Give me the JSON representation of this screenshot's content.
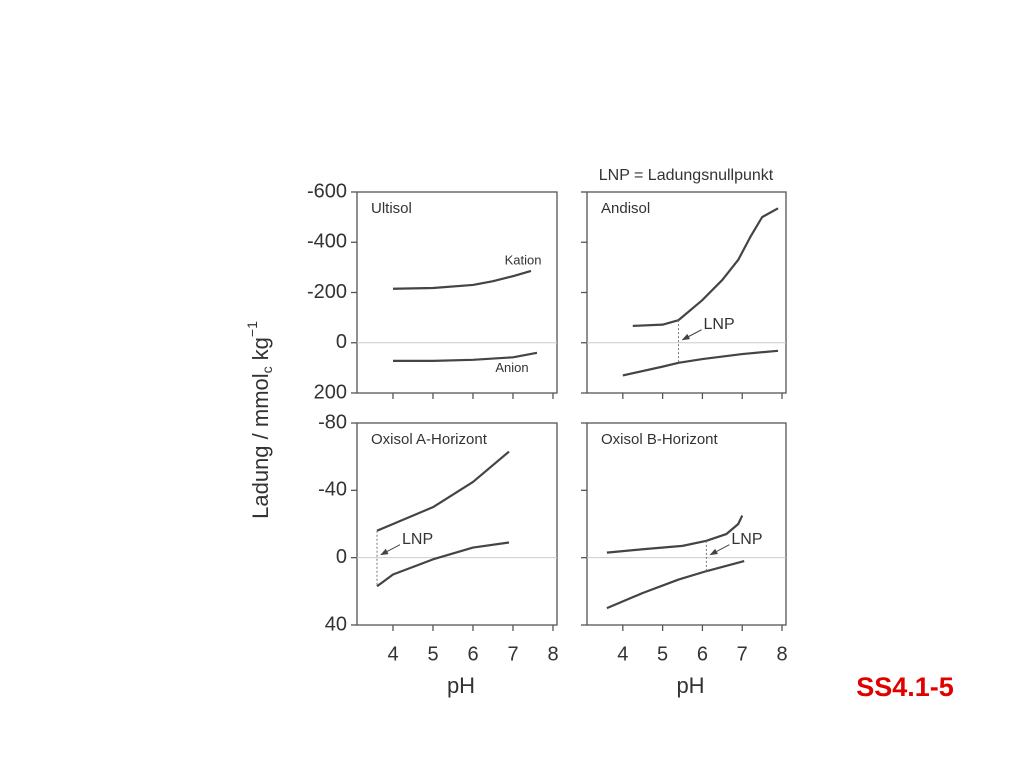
{
  "header_note": "LNP = Ladungsnullpunkt",
  "slide_id": "SS4.1-5",
  "ylabel": {
    "main": "Ladung / mmol",
    "sub": "c",
    "unit": "kg",
    "sup": "−1"
  },
  "chart_data": [
    {
      "type": "line",
      "title": "Ultisol",
      "xlim": [
        3.1,
        8.1
      ],
      "xticks": [
        4,
        5,
        6,
        7,
        8
      ],
      "ylim": [
        -600,
        200
      ],
      "yticks": [
        -600,
        -400,
        -200,
        0,
        200
      ],
      "y_inverted": true,
      "hline": 0,
      "show_xticklabels": false,
      "show_yticklabels": true,
      "series": [
        {
          "name": "Kation",
          "color": "#444444",
          "x": [
            4.0,
            5.0,
            6.0,
            6.5,
            7.0,
            7.45
          ],
          "values": [
            -215,
            -218,
            -230,
            -245,
            -265,
            -286
          ]
        },
        {
          "name": "Anion",
          "color": "#444444",
          "x": [
            4.0,
            5.0,
            6.0,
            7.0,
            7.6
          ],
          "values": [
            72,
            72,
            68,
            58,
            40
          ]
        }
      ]
    },
    {
      "type": "line",
      "title": "Andisol",
      "xlim": [
        3.1,
        8.1
      ],
      "xticks": [
        4,
        5,
        6,
        7,
        8
      ],
      "ylim": [
        -600,
        200
      ],
      "yticks": [
        -600,
        -400,
        -200,
        0,
        200
      ],
      "y_inverted": true,
      "hline": 0,
      "show_xticklabels": false,
      "show_yticklabels": false,
      "annotation": {
        "text": "LNP",
        "x": 5.4
      },
      "series": [
        {
          "color": "#444444",
          "x": [
            4.25,
            5.0,
            5.4,
            6.0,
            6.5,
            6.9,
            7.2,
            7.5,
            7.9
          ],
          "values": [
            -67,
            -72,
            -90,
            -170,
            -250,
            -330,
            -420,
            -500,
            -535
          ]
        },
        {
          "color": "#444444",
          "x": [
            4.0,
            5.0,
            5.4,
            6.0,
            7.0,
            7.9
          ],
          "values": [
            130,
            95,
            80,
            65,
            45,
            32
          ]
        }
      ]
    },
    {
      "type": "line",
      "title": "Oxisol A-Horizont",
      "xlabel": "pH",
      "xlim": [
        3.1,
        8.1
      ],
      "xticks": [
        4,
        5,
        6,
        7,
        8
      ],
      "ylim": [
        -80,
        40
      ],
      "yticks": [
        -80,
        -40,
        0,
        40
      ],
      "y_inverted": true,
      "hline": 0,
      "show_xticklabels": true,
      "show_yticklabels": true,
      "annotation": {
        "text": "LNP",
        "x": 3.6
      },
      "series": [
        {
          "color": "#444444",
          "x": [
            3.6,
            4.0,
            5.0,
            6.0,
            6.9
          ],
          "values": [
            -16,
            -20,
            -30,
            -45,
            -63
          ]
        },
        {
          "color": "#444444",
          "x": [
            3.6,
            4.0,
            5.0,
            6.0,
            6.9
          ],
          "values": [
            17,
            10,
            1,
            -6,
            -9
          ]
        }
      ]
    },
    {
      "type": "line",
      "title": "Oxisol B-Horizont",
      "xlabel": "pH",
      "xlim": [
        3.1,
        8.1
      ],
      "xticks": [
        4,
        5,
        6,
        7,
        8
      ],
      "ylim": [
        -80,
        40
      ],
      "yticks": [
        -80,
        -40,
        0,
        40
      ],
      "y_inverted": true,
      "hline": 0,
      "show_xticklabels": true,
      "show_yticklabels": false,
      "annotation": {
        "text": "LNP",
        "x": 6.1
      },
      "series": [
        {
          "color": "#444444",
          "x": [
            3.6,
            4.5,
            5.5,
            6.1,
            6.6,
            6.9,
            7.0
          ],
          "values": [
            -3,
            -5,
            -7,
            -10,
            -14,
            -20,
            -25
          ]
        },
        {
          "color": "#444444",
          "x": [
            3.6,
            4.5,
            5.4,
            6.1,
            7.05
          ],
          "values": [
            30,
            21,
            13,
            8,
            2
          ]
        }
      ]
    }
  ]
}
